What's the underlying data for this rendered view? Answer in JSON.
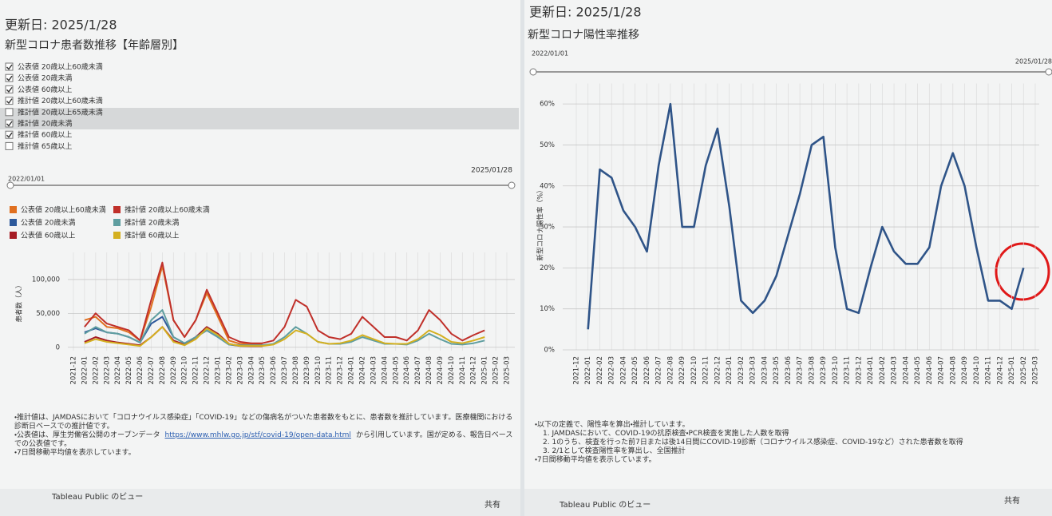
{
  "left_panel": {
    "updated": "更新日: 2025/1/28",
    "title": "新型コロナ患者数推移【年齢層別】",
    "filters": [
      {
        "label": "公表値 20歳以上60歳未満",
        "checked": true
      },
      {
        "label": "公表値 20歳未満",
        "checked": true
      },
      {
        "label": "公表値 60歳以上",
        "checked": true
      },
      {
        "label": "推計値 20歳以上60歳未満",
        "checked": true
      },
      {
        "label": "推計値 20歳以上65歳未満",
        "checked": false
      },
      {
        "label": "推計値 20歳未満",
        "checked": true
      },
      {
        "label": "推計値 60歳以上",
        "checked": true
      },
      {
        "label": "推計値 65歳以上",
        "checked": false
      }
    ],
    "slider": {
      "start": "2022/01/01",
      "end": "2025/01/28"
    },
    "notes": [
      {
        "text": "・推計値は、JAMDASにおいて「コロナウイルス感染症」「COVID-19」などの傷病名がついた患者数をもとに、患者数を推計しています。医療機関における診断日ベースでの推計値です。"
      },
      {
        "text": "・公表値は、厚生労働省公開のオープンデータ",
        "link": "https://www.mhlw.go.jp/stf/covid-19/open-data.html",
        "after": "から引用しています。国が定める、報告日ベースでの公表値です。"
      },
      {
        "text": "・7日間移動平均値を表示しています。"
      }
    ],
    "footer": {
      "view": "Tableau Public のビュー",
      "share": "共有"
    }
  },
  "right_panel": {
    "updated": "更新日: 2025/1/28",
    "title": "新型コロナ陽性率推移",
    "slider": {
      "start": "2022/01/01",
      "end": "2025/01/28"
    },
    "notes": [
      {
        "text": "・以下の定義で、陽性率を算出・推計しています。"
      },
      {
        "text": "1. JAMDASにおいて、COVID-19の抗原検査・PCR検査を実施した人数を取得"
      },
      {
        "text": "2. 1のうち、検査を行った前7日または後14日間にCOVID-19診断（コロナウイルス感染症、COVID-19など）された患者数を取得"
      },
      {
        "text": "3. 2/1として検査陽性率を算出し、全国推計"
      },
      {
        "text": "・7日間移動平均値を表示しています。"
      }
    ],
    "footer": {
      "view": "Tableau Public のビュー",
      "share": "共有"
    }
  },
  "chart_data": [
    {
      "type": "line",
      "y_label": "患者数（人）",
      "categories": [
        "2021-12",
        "2022-01",
        "2022-02",
        "2022-03",
        "2022-04",
        "2022-05",
        "2022-06",
        "2022-07",
        "2022-08",
        "2022-09",
        "2022-10",
        "2022-11",
        "2022-12",
        "2023-01",
        "2023-02",
        "2023-03",
        "2023-04",
        "2023-05",
        "2023-06",
        "2023-07",
        "2023-08",
        "2023-09",
        "2023-10",
        "2023-11",
        "2023-12",
        "2024-01",
        "2024-02",
        "2024-03",
        "2024-04",
        "2024-05",
        "2024-06",
        "2024-07",
        "2024-08",
        "2024-09",
        "2024-10",
        "2024-11",
        "2024-12",
        "2025-01",
        "2025-02",
        "2025-03"
      ],
      "series": [
        {
          "name": "公表値 20歳以上60歳未満",
          "color": "#e07020",
          "values": [
            null,
            40000,
            45000,
            30000,
            28000,
            22000,
            10000,
            60000,
            120000,
            40000,
            15000,
            40000,
            80000,
            45000,
            10000,
            5000,
            5000,
            4000,
            null,
            null,
            null,
            null,
            null,
            null,
            null,
            null,
            null,
            null,
            null,
            null,
            null,
            null,
            null,
            null,
            null,
            null,
            null,
            null,
            null,
            null
          ]
        },
        {
          "name": "公表値 20歳未満",
          "color": "#2e5a9c",
          "values": [
            null,
            22000,
            28000,
            22000,
            20000,
            15000,
            7000,
            35000,
            45000,
            15000,
            6000,
            15000,
            25000,
            15000,
            4000,
            2000,
            2000,
            2000,
            null,
            null,
            null,
            null,
            null,
            null,
            null,
            null,
            null,
            null,
            null,
            null,
            null,
            null,
            null,
            null,
            null,
            null,
            null,
            null,
            null,
            null
          ]
        },
        {
          "name": "公表値 60歳以上",
          "color": "#a51c24",
          "values": [
            null,
            8000,
            15000,
            10000,
            7000,
            5000,
            3000,
            15000,
            30000,
            10000,
            4000,
            15000,
            30000,
            20000,
            5000,
            2000,
            1500,
            1500,
            null,
            null,
            null,
            null,
            null,
            null,
            null,
            null,
            null,
            null,
            null,
            null,
            null,
            null,
            null,
            null,
            null,
            null,
            null,
            null,
            null,
            null
          ]
        },
        {
          "name": "推計値 20歳以上60歳未満",
          "color": "#c0302a",
          "values": [
            null,
            30000,
            50000,
            35000,
            30000,
            25000,
            10000,
            70000,
            125000,
            40000,
            15000,
            40000,
            85000,
            50000,
            15000,
            8000,
            6000,
            6000,
            10000,
            30000,
            70000,
            60000,
            25000,
            15000,
            12000,
            20000,
            45000,
            30000,
            15000,
            15000,
            10000,
            25000,
            55000,
            40000,
            20000,
            10000,
            18000,
            25000,
            null,
            null
          ]
        },
        {
          "name": "推計値 20歳未満",
          "color": "#5f9ea0",
          "values": [
            null,
            20000,
            30000,
            22000,
            20000,
            15000,
            7000,
            40000,
            55000,
            15000,
            6000,
            15000,
            25000,
            15000,
            4000,
            3000,
            3000,
            3000,
            5000,
            15000,
            30000,
            20000,
            8000,
            5000,
            5000,
            8000,
            15000,
            10000,
            5000,
            5000,
            4000,
            10000,
            20000,
            12000,
            5000,
            4000,
            6000,
            10000,
            null,
            null
          ]
        },
        {
          "name": "推計値 60歳以上",
          "color": "#d4b020",
          "values": [
            null,
            6000,
            12000,
            8000,
            6000,
            4000,
            2000,
            15000,
            30000,
            8000,
            3000,
            12000,
            28000,
            18000,
            5000,
            2000,
            2000,
            2000,
            4000,
            12000,
            25000,
            20000,
            8000,
            5000,
            6000,
            10000,
            18000,
            12000,
            6000,
            5000,
            5000,
            12000,
            25000,
            18000,
            8000,
            6000,
            10000,
            15000,
            null,
            null
          ]
        }
      ],
      "ylim": [
        -5000,
        140000
      ],
      "yticks": [
        0,
        {
          "value": 50000,
          "label": "50,000"
        },
        {
          "value": 100000,
          "label": "100,000"
        }
      ],
      "grid": true,
      "legend": "top"
    },
    {
      "type": "line",
      "y_label": "新型コロナ陽性率（%）",
      "categories": [
        "2021-12",
        "2022-01",
        "2022-02",
        "2022-03",
        "2022-04",
        "2022-05",
        "2022-06",
        "2022-07",
        "2022-08",
        "2022-09",
        "2022-10",
        "2022-11",
        "2022-12",
        "2023-01",
        "2023-02",
        "2023-03",
        "2023-04",
        "2023-05",
        "2023-06",
        "2023-07",
        "2023-08",
        "2023-09",
        "2023-10",
        "2023-11",
        "2023-12",
        "2024-01",
        "2024-02",
        "2024-03",
        "2024-04",
        "2024-05",
        "2024-06",
        "2024-07",
        "2024-08",
        "2024-09",
        "2024-10",
        "2024-11",
        "2024-12",
        "2025-01",
        "2025-02",
        "2025-03"
      ],
      "series": [
        {
          "name": "陽性率",
          "color": "#2f5488",
          "values": [
            null,
            5,
            44,
            42,
            34,
            30,
            24,
            45,
            60,
            30,
            30,
            45,
            54,
            35,
            12,
            9,
            12,
            18,
            28,
            38,
            50,
            52,
            25,
            10,
            9,
            20,
            30,
            24,
            21,
            21,
            25,
            40,
            48,
            40,
            25,
            12,
            12,
            10,
            20,
            null
          ]
        }
      ],
      "ylim": [
        0,
        65
      ],
      "yticks": [
        {
          "value": 0,
          "label": "0%"
        },
        {
          "value": 10,
          "label": "10%"
        },
        {
          "value": 20,
          "label": "20%"
        },
        {
          "value": 30,
          "label": "30%"
        },
        {
          "value": 40,
          "label": "40%"
        },
        {
          "value": 50,
          "label": "50%"
        },
        {
          "value": 60,
          "label": "60%"
        }
      ],
      "grid": true
    }
  ]
}
